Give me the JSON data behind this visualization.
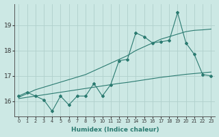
{
  "xlabel": "Humidex (Indice chaleur)",
  "x_values": [
    0,
    1,
    2,
    3,
    4,
    5,
    6,
    7,
    8,
    9,
    10,
    11,
    12,
    13,
    14,
    15,
    16,
    17,
    18,
    19,
    20,
    21,
    22,
    23
  ],
  "y_main": [
    16.2,
    16.35,
    16.2,
    16.05,
    15.6,
    16.2,
    15.85,
    16.2,
    16.2,
    16.7,
    16.2,
    16.65,
    17.6,
    17.65,
    18.7,
    18.55,
    18.3,
    18.35,
    18.4,
    19.5,
    18.3,
    17.85,
    17.05,
    17.0
  ],
  "y_trend_upper": [
    16.15,
    16.3,
    16.45,
    16.55,
    16.65,
    16.75,
    16.85,
    16.95,
    17.05,
    17.2,
    17.35,
    17.5,
    17.65,
    17.8,
    18.0,
    18.15,
    18.3,
    18.45,
    18.55,
    18.65,
    18.75,
    18.8,
    18.82,
    18.85
  ],
  "y_trend_lower": [
    16.1,
    16.15,
    16.2,
    16.25,
    16.3,
    16.35,
    16.4,
    16.45,
    16.5,
    16.55,
    16.6,
    16.65,
    16.7,
    16.74,
    16.79,
    16.84,
    16.89,
    16.94,
    16.98,
    17.02,
    17.06,
    17.09,
    17.12,
    17.15
  ],
  "line_color": "#2a7a70",
  "bg_color": "#cce8e4",
  "grid_color": "#b0d0cc",
  "ylim": [
    15.4,
    19.85
  ],
  "yticks": [
    16,
    17,
    18,
    19
  ],
  "xticks": [
    0,
    1,
    2,
    3,
    4,
    5,
    6,
    7,
    8,
    9,
    10,
    11,
    12,
    13,
    14,
    15,
    16,
    17,
    18,
    19,
    20,
    21,
    22,
    23
  ],
  "xlim": [
    -0.5,
    23.5
  ]
}
